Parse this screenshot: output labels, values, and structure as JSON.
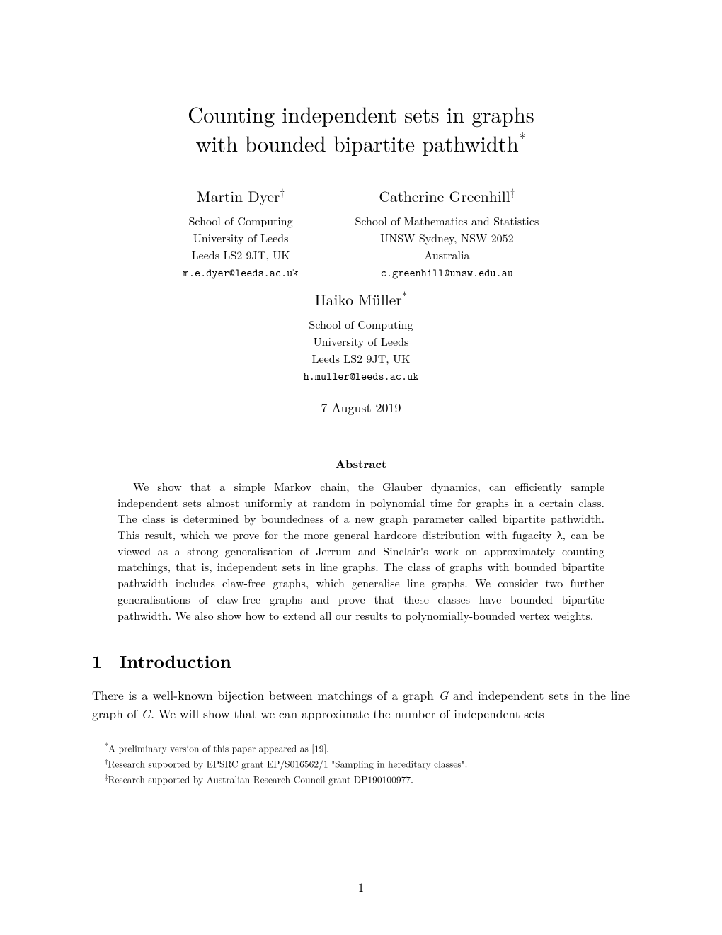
{
  "title_line1": "Counting independent sets in graphs",
  "title_line2": "with bounded bipartite pathwidth",
  "title_mark": "*",
  "authors": {
    "left": {
      "name": "Martin Dyer",
      "mark": "†",
      "affil1": "School of Computing",
      "affil2": "University of Leeds",
      "affil3": "Leeds LS2 9JT, UK",
      "email": "m.e.dyer@leeds.ac.uk"
    },
    "right": {
      "name": "Catherine Greenhill",
      "mark": "‡",
      "affil1": "School of Mathematics and Statistics",
      "affil2": "UNSW Sydney, NSW 2052",
      "affil3": "Australia",
      "email": "c.greenhill@unsw.edu.au"
    },
    "center": {
      "name": "Haiko Müller",
      "mark": "*",
      "affil1": "School of Computing",
      "affil2": "University of Leeds",
      "affil3": "Leeds LS2 9JT, UK",
      "email": "h.muller@leeds.ac.uk"
    }
  },
  "date": "7 August 2019",
  "abstract_heading": "Abstract",
  "abstract_body": "We show that a simple Markov chain, the Glauber dynamics, can efficiently sample independent sets almost uniformly at random in polynomial time for graphs in a certain class. The class is determined by boundedness of a new graph parameter called bipartite pathwidth. This result, which we prove for the more general hardcore distribution with fugacity λ, can be viewed as a strong generalisation of Jerrum and Sinclair's work on approximately counting matchings, that is, independent sets in line graphs. The class of graphs with bounded bipartite pathwidth includes claw-free graphs, which generalise line graphs. We consider two further generalisations of claw-free graphs and prove that these classes have bounded bipartite pathwidth. We also show how to extend all our results to polynomially-bounded vertex weights.",
  "section": {
    "num": "1",
    "title": "Introduction"
  },
  "body_p1_a": "There is a well-known bijection between matchings of a graph ",
  "body_p1_G1": "G",
  "body_p1_b": " and independent sets in the line graph of ",
  "body_p1_G2": "G",
  "body_p1_c": ". We will show that we can approximate the number of independent sets",
  "footnotes": {
    "f1": {
      "mark": "*",
      "text": "A preliminary version of this paper appeared as [19]."
    },
    "f2": {
      "mark": "†",
      "text": "Research supported by EPSRC grant EP/S016562/1 \"Sampling in hereditary classes\"."
    },
    "f3": {
      "mark": "‡",
      "text": "Research supported by Australian Research Council grant DP190100977."
    }
  },
  "pagenum": "1"
}
